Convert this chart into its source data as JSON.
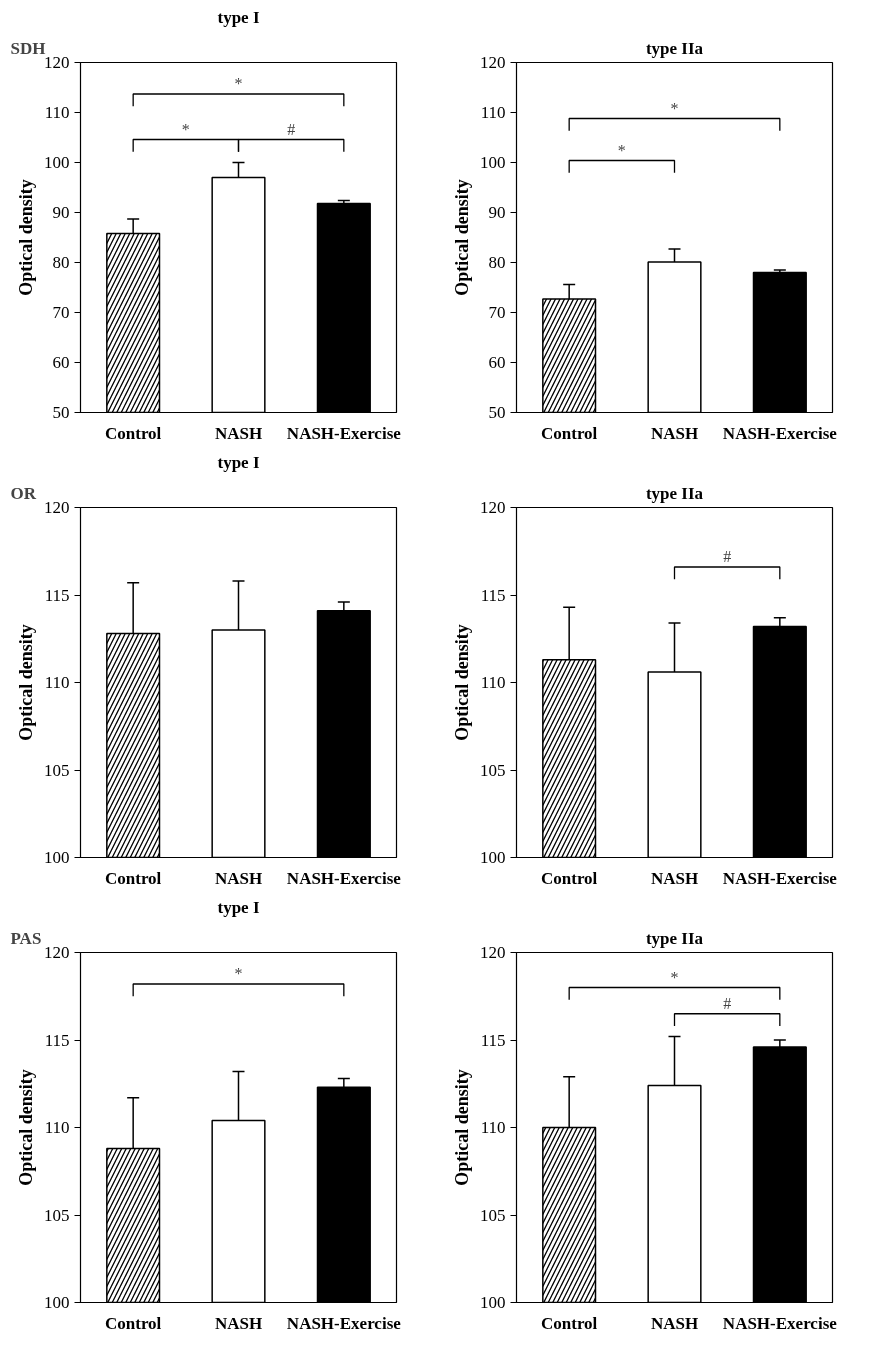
{
  "chart_data": [
    {
      "type": "bar",
      "title": "type I",
      "annotations": [
        "SDH",
        "*",
        "*",
        "#"
      ],
      "ylabel": "Optical density",
      "categories": [
        "Control",
        "NASH",
        "NASH-Exercise"
      ],
      "values": [
        85.8,
        97.0,
        91.8
      ],
      "errors": [
        [
          85.8,
          88.7
        ],
        [
          97.0,
          100.0
        ],
        [
          91.8,
          92.4
        ]
      ],
      "colors": [
        "#ffffff",
        "#ffffff",
        "#000000"
      ],
      "ylim": [
        50,
        120
      ],
      "yticks": [
        50,
        60,
        70,
        80,
        90,
        100,
        110,
        120
      ]
    },
    {
      "type": "bar",
      "title": "type IIa",
      "annotations": [
        "*",
        "*"
      ],
      "ylabel": "Optical density",
      "categories": [
        "Control",
        "NASH",
        "NASH-Exercise"
      ],
      "values": [
        72.7,
        80.1,
        78.0
      ],
      "errors": [
        [
          72.7,
          75.6
        ],
        [
          80.1,
          82.7
        ],
        [
          78.0,
          78.5
        ]
      ],
      "colors": [
        "#ffffff",
        "#ffffff",
        "#000000"
      ],
      "ylim": [
        50,
        120
      ],
      "yticks": [
        50,
        60,
        70,
        80,
        90,
        100,
        110,
        120
      ]
    },
    {
      "type": "bar",
      "title": "type I",
      "annotations": [
        "OR"
      ],
      "ylabel": "Optical density",
      "categories": [
        "Control",
        "NASH",
        "NASH-Exercise"
      ],
      "values": [
        112.8,
        113.0,
        114.1
      ],
      "errors": [
        [
          112.8,
          115.7
        ],
        [
          113.0,
          115.8
        ],
        [
          114.1,
          114.6
        ]
      ],
      "colors": [
        "#ffffff",
        "#ffffff",
        "#000000"
      ],
      "ylim": [
        100,
        120
      ],
      "yticks": [
        100,
        105,
        110,
        115,
        120
      ]
    },
    {
      "type": "bar",
      "title": "type IIa",
      "annotations": [
        "#"
      ],
      "ylabel": "Optical density",
      "categories": [
        "Control",
        "NASH",
        "NASH-Exercise"
      ],
      "values": [
        111.3,
        110.6,
        113.2
      ],
      "errors": [
        [
          111.3,
          114.3
        ],
        [
          110.6,
          113.4
        ],
        [
          113.2,
          113.7
        ]
      ],
      "colors": [
        "#ffffff",
        "#ffffff",
        "#000000"
      ],
      "ylim": [
        100,
        120
      ],
      "yticks": [
        100,
        105,
        110,
        115,
        120
      ]
    },
    {
      "type": "bar",
      "title": "type I",
      "annotations": [
        "PAS",
        "*"
      ],
      "ylabel": "Optical density",
      "categories": [
        "Control",
        "NASH",
        "NASH-Exercise"
      ],
      "values": [
        108.8,
        110.4,
        112.3
      ],
      "errors": [
        [
          108.8,
          111.7
        ],
        [
          110.4,
          113.2
        ],
        [
          112.3,
          112.8
        ]
      ],
      "colors": [
        "#ffffff",
        "#ffffff",
        "#000000"
      ],
      "ylim": [
        100,
        120
      ],
      "yticks": [
        100,
        105,
        110,
        115,
        120
      ]
    },
    {
      "type": "bar",
      "title": "type IIa",
      "annotations": [
        "*",
        "#"
      ],
      "ylabel": "Optical density",
      "categories": [
        "Control",
        "NASH",
        "NASH-Exercise"
      ],
      "values": [
        110.0,
        112.4,
        114.6
      ],
      "errors": [
        [
          110.0,
          112.9
        ],
        [
          112.4,
          115.2
        ],
        [
          114.6,
          115.0
        ]
      ],
      "colors": [
        "#ffffff",
        "#ffffff",
        "#000000"
      ],
      "ylim": [
        100,
        120
      ],
      "yticks": [
        100,
        105,
        110,
        115,
        120
      ]
    }
  ]
}
